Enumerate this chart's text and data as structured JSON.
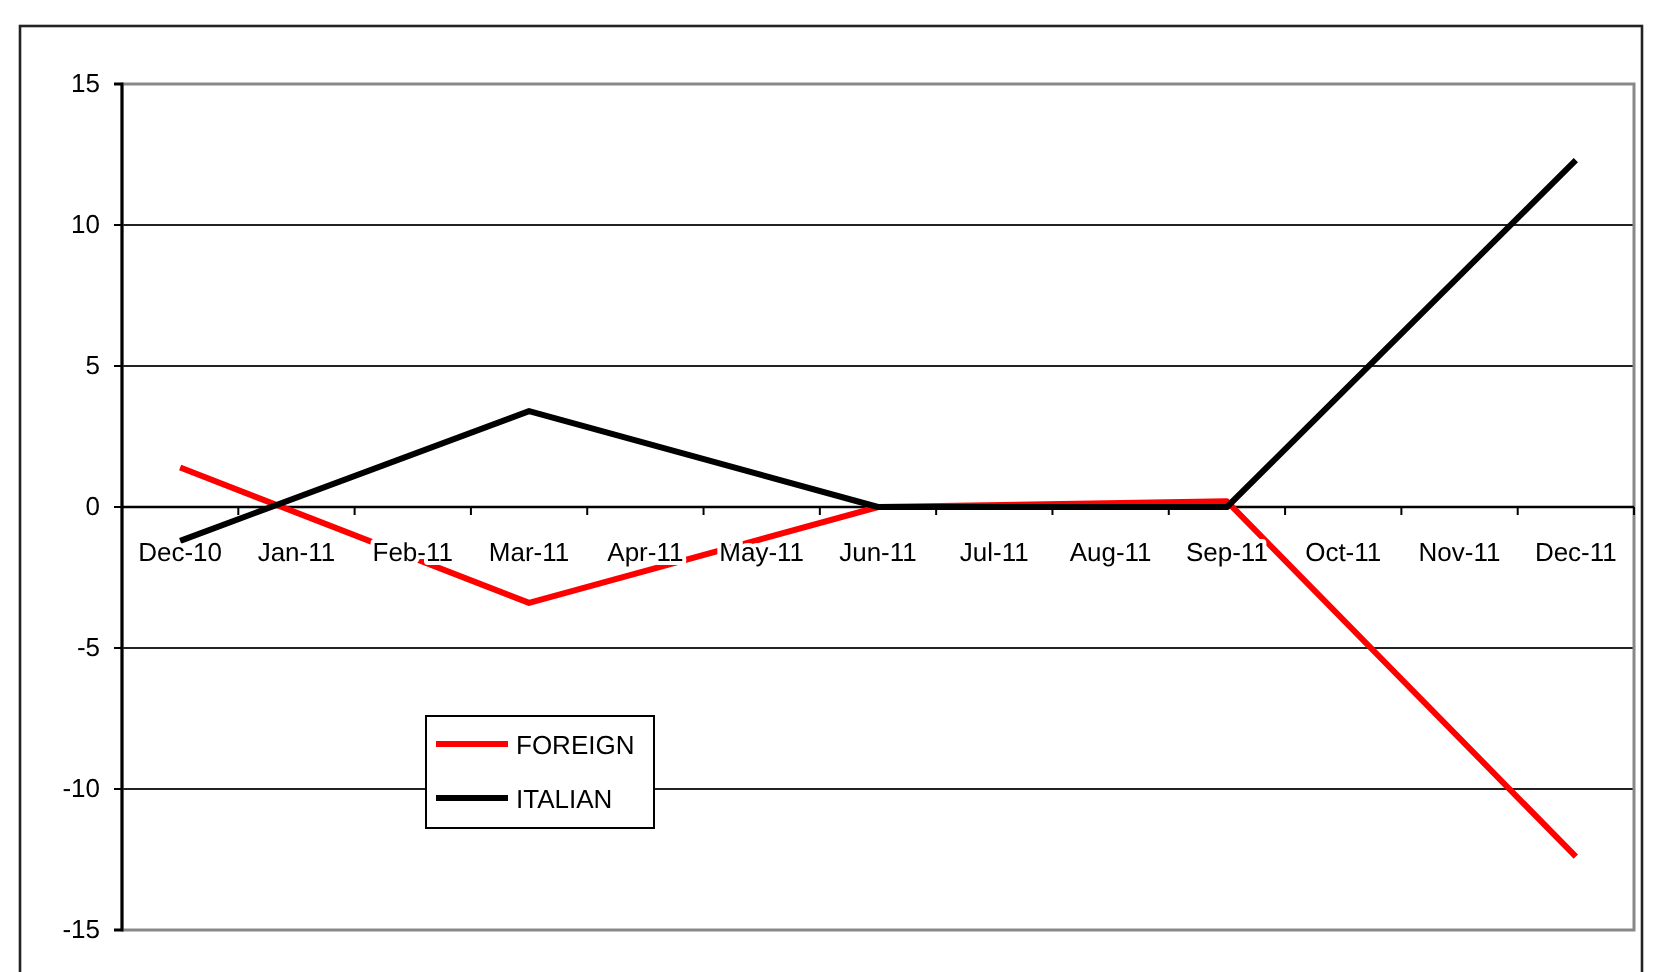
{
  "chart_data": {
    "type": "line",
    "categories": [
      "Dec-10",
      "Jan-11",
      "Feb-11",
      "Mar-11",
      "Apr-11",
      "May-11",
      "Jun-11",
      "Jul-11",
      "Aug-11",
      "Sep-11",
      "Oct-11",
      "Nov-11",
      "Dec-11"
    ],
    "series": [
      {
        "name": "FOREIGN",
        "color": "#ff0000",
        "values": [
          1.4,
          null,
          null,
          -3.4,
          null,
          null,
          0,
          null,
          null,
          0.2,
          null,
          null,
          -12.4
        ]
      },
      {
        "name": "ITALIAN",
        "color": "#000000",
        "values": [
          -1.2,
          null,
          null,
          3.4,
          null,
          null,
          0,
          null,
          null,
          0,
          null,
          null,
          12.3
        ]
      }
    ],
    "ylim": [
      -15,
      15
    ],
    "yticks": [
      -15,
      -10,
      -5,
      0,
      5,
      10,
      15
    ],
    "grid": "y",
    "legend": "bottom left",
    "marker": "none",
    "line_style": "solid"
  }
}
